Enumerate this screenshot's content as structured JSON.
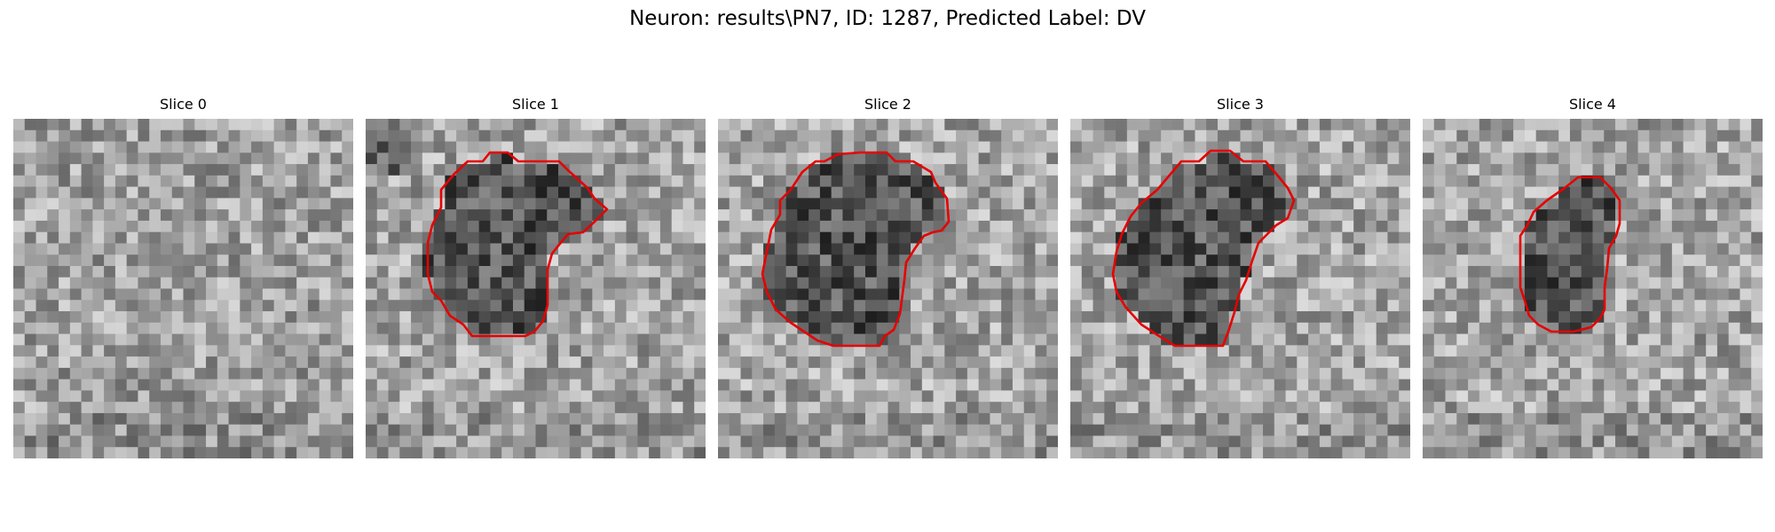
{
  "figure": {
    "title": "Neuron: results\\PN7, ID: 1287, Predicted Label: DV",
    "contour_color": "#e60000",
    "colormap": "gray"
  },
  "panels": [
    {
      "title": "Slice 0",
      "has_contour": false,
      "image": "grayscale-noise-patch"
    },
    {
      "title": "Slice 1",
      "has_contour": true,
      "image": "grayscale-noise-patch"
    },
    {
      "title": "Slice 2",
      "has_contour": true,
      "image": "grayscale-noise-patch"
    },
    {
      "title": "Slice 3",
      "has_contour": true,
      "image": "grayscale-noise-patch"
    },
    {
      "title": "Slice 4",
      "has_contour": true,
      "image": "grayscale-noise-patch"
    }
  ]
}
